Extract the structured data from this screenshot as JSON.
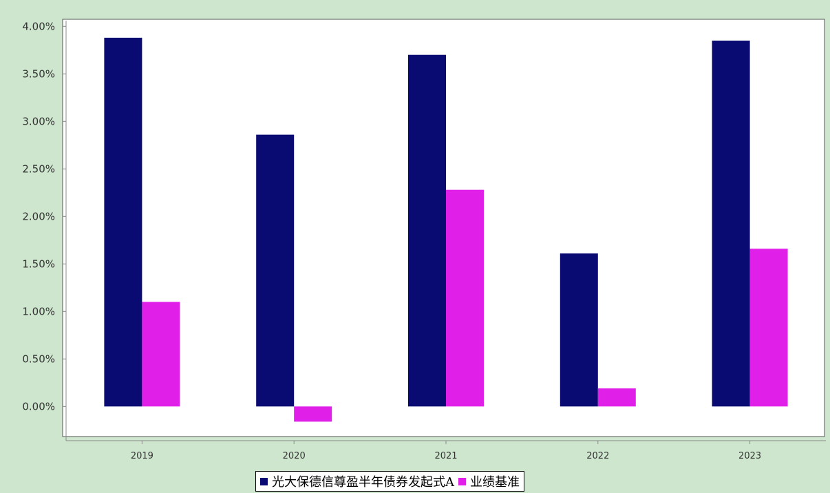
{
  "chart_data": {
    "type": "bar",
    "categories": [
      "2019",
      "2020",
      "2021",
      "2022",
      "2023"
    ],
    "series": [
      {
        "name": "光大保德信尊盈半年债券发起式A",
        "color": "#0a0a73",
        "values": [
          3.88,
          2.86,
          3.7,
          1.61,
          3.85
        ]
      },
      {
        "name": "业绩基准",
        "color": "#e020e8",
        "values": [
          1.1,
          -0.16,
          2.28,
          0.19,
          1.66
        ]
      }
    ],
    "yticks": [
      "4.00%",
      "3.50%",
      "3.00%",
      "2.50%",
      "2.00%",
      "1.50%",
      "1.00%",
      "0.50%",
      "0.00%"
    ],
    "ylim": [
      -0.36,
      4.06
    ],
    "grid": false,
    "legend_position": "bottom-center",
    "title": "",
    "xlabel": "",
    "ylabel": ""
  }
}
